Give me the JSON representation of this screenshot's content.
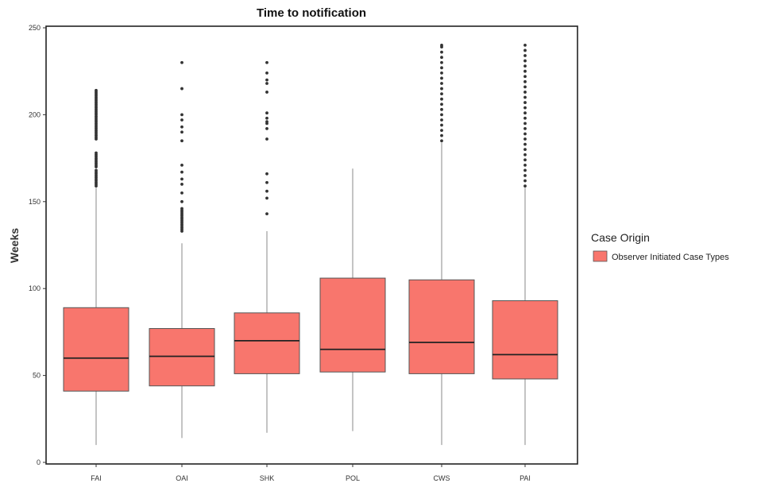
{
  "chart_data": {
    "type": "box",
    "title": "Time to notification",
    "xlabel": "",
    "ylabel": "Weeks",
    "ylim": [
      0,
      250
    ],
    "yticks": [
      0,
      50,
      100,
      150,
      200,
      250
    ],
    "grid": false,
    "legend": {
      "title": "Case Origin",
      "position": "right",
      "entries": [
        {
          "label": "Observer Initiated Case Types",
          "color": "#f8766d"
        }
      ]
    },
    "colors": {
      "box_fill": "#f8766d",
      "box_stroke": "#555555",
      "median": "#222222",
      "outlier": "#333333"
    },
    "categories": [
      "FAI",
      "OAI",
      "SHK",
      "POL",
      "CWS",
      "PAI"
    ],
    "boxes": [
      {
        "category": "FAI",
        "whisker_low": 10,
        "q1": 41,
        "median": 60,
        "q3": 89,
        "whisker_high": 158,
        "outliers": [
          159,
          160,
          161,
          162,
          163,
          164,
          165,
          166,
          167,
          168,
          170,
          171,
          172,
          173,
          174,
          175,
          176,
          177,
          178,
          186,
          187,
          188,
          189,
          190,
          191,
          192,
          193,
          194,
          195,
          196,
          197,
          198,
          199,
          200,
          201,
          202,
          203,
          204,
          205,
          206,
          207,
          208,
          209,
          210,
          211,
          212,
          213,
          214
        ]
      },
      {
        "category": "OAI",
        "whisker_low": 14,
        "q1": 44,
        "median": 61,
        "q3": 77,
        "whisker_high": 126,
        "outliers": [
          133,
          134,
          135,
          136,
          137,
          138,
          139,
          140,
          141,
          142,
          143,
          144,
          145,
          146,
          150,
          155,
          160,
          163,
          167,
          171,
          185,
          190,
          193,
          197,
          200,
          215,
          230
        ]
      },
      {
        "category": "SHK",
        "whisker_low": 17,
        "q1": 51,
        "median": 70,
        "q3": 86,
        "whisker_high": 133,
        "outliers": [
          143,
          152,
          156,
          161,
          166,
          186,
          192,
          195,
          196,
          198,
          201,
          213,
          218,
          220,
          224,
          230
        ]
      },
      {
        "category": "POL",
        "whisker_low": 18,
        "q1": 52,
        "median": 65,
        "q3": 106,
        "whisker_high": 169,
        "outliers": []
      },
      {
        "category": "CWS",
        "whisker_low": 10,
        "q1": 51,
        "median": 69,
        "q3": 105,
        "whisker_high": 184,
        "outliers": [
          185,
          188,
          191,
          194,
          197,
          200,
          203,
          206,
          209,
          212,
          215,
          218,
          221,
          224,
          227,
          230,
          233,
          236,
          239,
          240
        ]
      },
      {
        "category": "PAI",
        "whisker_low": 10,
        "q1": 48,
        "median": 62,
        "q3": 93,
        "whisker_high": 158,
        "outliers": [
          159,
          162,
          165,
          168,
          171,
          174,
          177,
          180,
          183,
          186,
          189,
          192,
          195,
          198,
          201,
          204,
          207,
          210,
          213,
          216,
          219,
          222,
          225,
          228,
          231,
          234,
          237,
          240
        ]
      }
    ]
  }
}
